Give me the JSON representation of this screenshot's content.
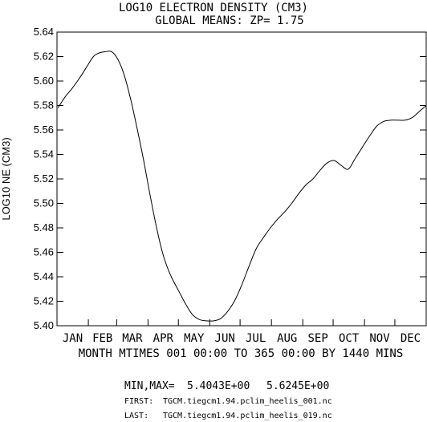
{
  "chart_data": {
    "type": "line",
    "title": "LOG10 ELECTRON DENSITY (CM3)",
    "subtitle": "GLOBAL MEANS: ZP=  1.75",
    "ylabel": "LOG10 NE (CM3)",
    "xlabel": "MONTH MTIMES 001 00:00 TO 365 00:00 BY 1440 MINS",
    "ylim": [
      5.4,
      5.64
    ],
    "xlim": [
      0,
      365
    ],
    "grid": false,
    "y_ticks": [
      "5.40",
      "5.42",
      "5.44",
      "5.46",
      "5.48",
      "5.50",
      "5.52",
      "5.54",
      "5.56",
      "5.58",
      "5.60",
      "5.62",
      "5.64"
    ],
    "x_tick_labels": [
      "JAN",
      "FEB",
      "MAR",
      "APR",
      "MAY",
      "JUN",
      "JUL",
      "AUG",
      "SEP",
      "OCT",
      "NOV",
      "DEC"
    ],
    "x_tick_days": [
      0,
      31,
      59,
      90,
      120,
      151,
      181,
      212,
      243,
      273,
      304,
      334,
      365
    ],
    "series": [
      {
        "x": [
          1,
          8,
          15,
          22,
          29,
          36,
          42,
          48,
          54,
          60,
          66,
          72,
          78,
          85,
          92,
          99,
          106,
          113,
          120,
          127,
          134,
          141,
          148,
          155,
          162,
          169,
          176,
          183,
          190,
          197,
          204,
          211,
          218,
          225,
          232,
          239,
          246,
          253,
          260,
          267,
          274,
          281,
          288,
          295,
          302,
          309,
          316,
          323,
          330,
          337,
          344,
          351,
          358,
          365
        ],
        "y": [
          5.578,
          5.587,
          5.594,
          5.602,
          5.611,
          5.62,
          5.623,
          5.624,
          5.624,
          5.618,
          5.606,
          5.588,
          5.566,
          5.538,
          5.507,
          5.478,
          5.455,
          5.44,
          5.429,
          5.418,
          5.409,
          5.405,
          5.404,
          5.404,
          5.406,
          5.412,
          5.421,
          5.434,
          5.449,
          5.463,
          5.472,
          5.48,
          5.487,
          5.493,
          5.5,
          5.508,
          5.515,
          5.52,
          5.527,
          5.533,
          5.535,
          5.531,
          5.528,
          5.537,
          5.546,
          5.555,
          5.563,
          5.567,
          5.568,
          5.568,
          5.568,
          5.57,
          5.575,
          5.58
        ]
      }
    ]
  },
  "footer": {
    "minmax_label": "MIN,MAX=",
    "min_value": "5.4043E+00",
    "max_value": "5.6245E+00",
    "first_label": "FIRST:",
    "first_file": "TGCM.tiegcm1.94.pclim_heelis_001.nc",
    "last_label": "LAST:",
    "last_file": "TGCM.tiegcm1.94.pclim_heelis_019.nc"
  }
}
